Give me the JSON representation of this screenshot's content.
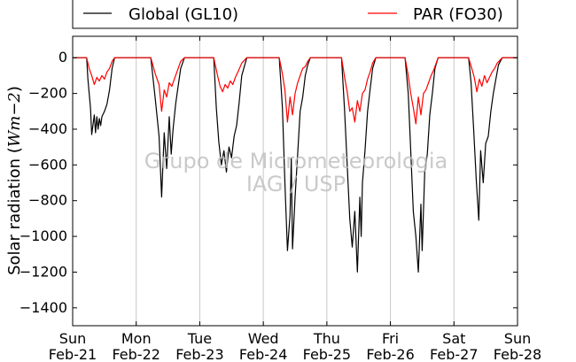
{
  "chart_data": {
    "type": "line",
    "title": "",
    "xlabel": "",
    "ylabel": "Solar radiation (Wm-2)",
    "ylabel_prefix": "Solar radiation (",
    "ylabel_unit": "Wm",
    "ylabel_exp": "−2",
    "ylabel_suffix": ")",
    "ylim": [
      -1500,
      120
    ],
    "yticks": [
      0,
      -200,
      -400,
      -600,
      -800,
      -1000,
      -1200,
      -1400
    ],
    "ytick_labels": [
      "0",
      "−200",
      "−400",
      "−600",
      "−800",
      "−1000",
      "−1200",
      "−1400"
    ],
    "xlim": [
      0,
      7
    ],
    "x_unit": "days since Feb-21 00:00",
    "xticks": [
      {
        "day": "Sun",
        "date": "Feb-21"
      },
      {
        "day": "Mon",
        "date": "Feb-22"
      },
      {
        "day": "Tue",
        "date": "Feb-23"
      },
      {
        "day": "Wed",
        "date": "Feb-24"
      },
      {
        "day": "Thu",
        "date": "Feb-25"
      },
      {
        "day": "Fri",
        "date": "Feb-26"
      },
      {
        "day": "Sat",
        "date": "Feb-27"
      },
      {
        "day": "Sun",
        "date": "Feb-28"
      }
    ],
    "grid": "vertical",
    "legend_position": "top",
    "series": [
      {
        "name": "Global (GL10)",
        "color": "#000000",
        "daily_minimum": [
          -430,
          -780,
          -640,
          -1090,
          -1200,
          -1200,
          -910
        ],
        "x": [
          0.22,
          0.24,
          0.28,
          0.3,
          0.34,
          0.36,
          0.38,
          0.4,
          0.42,
          0.44,
          0.46,
          0.5,
          0.54,
          0.58,
          0.62,
          0.66,
          1.23,
          1.3,
          1.36,
          1.4,
          1.44,
          1.48,
          1.52,
          1.55,
          1.58,
          1.62,
          1.66,
          1.7,
          1.76,
          2.22,
          2.26,
          2.3,
          2.34,
          2.38,
          2.42,
          2.46,
          2.5,
          2.54,
          2.58,
          2.62,
          2.66,
          2.74,
          3.25,
          3.3,
          3.34,
          3.38,
          3.42,
          3.44,
          3.46,
          3.5,
          3.54,
          3.58,
          3.62,
          3.66,
          3.7,
          3.74,
          4.23,
          4.28,
          4.32,
          4.36,
          4.4,
          4.44,
          4.48,
          4.52,
          4.54,
          4.56,
          4.6,
          4.64,
          4.68,
          4.72,
          4.77,
          5.23,
          5.28,
          5.32,
          5.36,
          5.4,
          5.44,
          5.48,
          5.5,
          5.54,
          5.58,
          5.62,
          5.66,
          5.7,
          5.75,
          6.23,
          6.27,
          6.31,
          6.35,
          6.39,
          6.42,
          6.46,
          6.5,
          6.54,
          6.58,
          6.62,
          6.66,
          6.7,
          6.76
        ],
        "values": [
          0,
          -120,
          -280,
          -430,
          -320,
          -420,
          -330,
          -400,
          -340,
          -380,
          -330,
          -300,
          -260,
          -180,
          -60,
          0,
          0,
          -230,
          -440,
          -780,
          -420,
          -620,
          -330,
          -540,
          -400,
          -260,
          -160,
          -60,
          0,
          0,
          -280,
          -470,
          -600,
          -520,
          -640,
          -500,
          -560,
          -440,
          -380,
          -250,
          -100,
          0,
          0,
          -280,
          -700,
          -1080,
          -880,
          -560,
          -1070,
          -780,
          -540,
          -300,
          -220,
          -100,
          -40,
          0,
          0,
          -300,
          -600,
          -900,
          -1060,
          -860,
          -1200,
          -780,
          -1000,
          -700,
          -520,
          -300,
          -180,
          -60,
          0,
          0,
          -200,
          -520,
          -860,
          -1000,
          -1200,
          -820,
          -1080,
          -640,
          -540,
          -320,
          -200,
          -60,
          0,
          0,
          -140,
          -400,
          -680,
          -910,
          -520,
          -700,
          -480,
          -440,
          -300,
          -200,
          -120,
          -40,
          0
        ]
      },
      {
        "name": "PAR (FO30)",
        "color": "#ff0000",
        "daily_minimum": [
          -150,
          -300,
          -190,
          -360,
          -360,
          -370,
          -190
        ],
        "x": [
          0.22,
          0.26,
          0.3,
          0.34,
          0.38,
          0.42,
          0.46,
          0.5,
          0.54,
          0.58,
          0.62,
          0.66,
          1.23,
          1.3,
          1.36,
          1.4,
          1.44,
          1.48,
          1.52,
          1.56,
          1.6,
          1.64,
          1.7,
          1.76,
          2.22,
          2.28,
          2.32,
          2.36,
          2.4,
          2.44,
          2.48,
          2.52,
          2.56,
          2.6,
          2.66,
          2.74,
          3.25,
          3.3,
          3.34,
          3.38,
          3.42,
          3.46,
          3.5,
          3.54,
          3.58,
          3.62,
          3.66,
          3.7,
          3.74,
          4.23,
          4.28,
          4.32,
          4.36,
          4.4,
          4.44,
          4.48,
          4.52,
          4.56,
          4.6,
          4.64,
          4.68,
          4.72,
          4.77,
          5.23,
          5.28,
          5.32,
          5.36,
          5.4,
          5.44,
          5.48,
          5.52,
          5.56,
          5.6,
          5.64,
          5.68,
          5.72,
          5.75,
          6.23,
          6.28,
          6.32,
          6.36,
          6.4,
          6.44,
          6.48,
          6.52,
          6.56,
          6.6,
          6.64,
          6.68,
          6.76
        ],
        "values": [
          0,
          -60,
          -100,
          -150,
          -110,
          -130,
          -100,
          -120,
          -80,
          -60,
          -20,
          0,
          0,
          -90,
          -150,
          -300,
          -180,
          -220,
          -140,
          -160,
          -120,
          -80,
          -20,
          0,
          0,
          -100,
          -160,
          -190,
          -150,
          -170,
          -130,
          -150,
          -110,
          -80,
          -30,
          0,
          0,
          -90,
          -180,
          -360,
          -220,
          -320,
          -200,
          -140,
          -100,
          -60,
          -50,
          -20,
          0,
          0,
          -110,
          -190,
          -300,
          -280,
          -360,
          -240,
          -300,
          -200,
          -180,
          -120,
          -80,
          -30,
          0,
          0,
          -100,
          -200,
          -280,
          -370,
          -220,
          -320,
          -200,
          -180,
          -140,
          -100,
          -70,
          -30,
          0,
          0,
          -60,
          -110,
          -190,
          -120,
          -160,
          -100,
          -140,
          -110,
          -80,
          -60,
          -30,
          0
        ]
      }
    ]
  },
  "watermark": {
    "line1": "Grupo de Micrometeorologia",
    "line2": "IAG / USP"
  }
}
